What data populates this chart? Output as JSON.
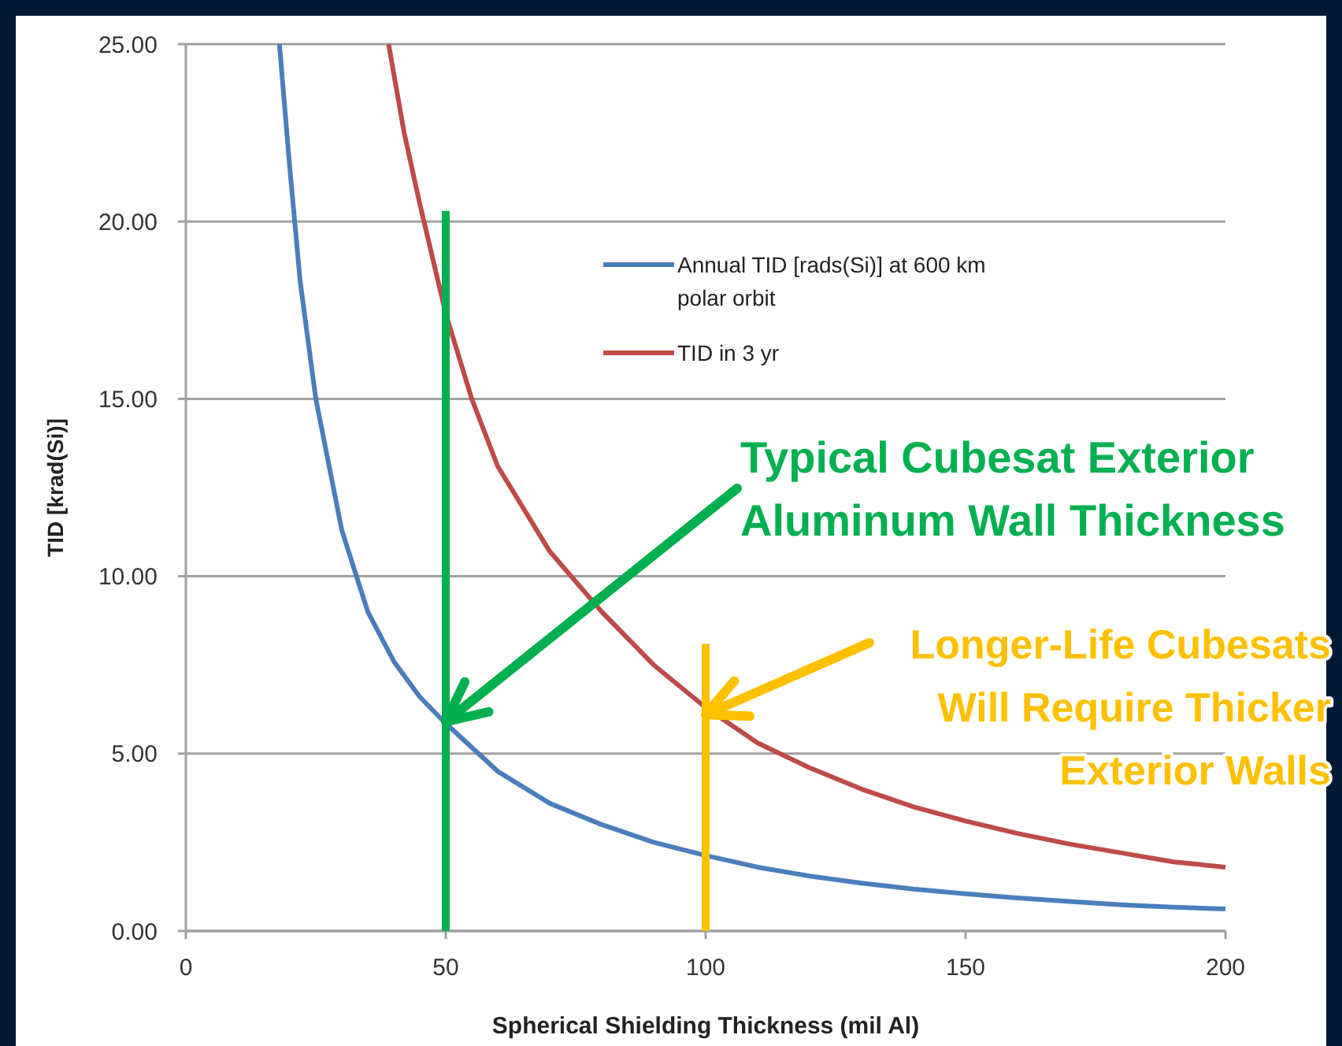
{
  "chart_data": {
    "type": "line",
    "xlabel": "Spherical Shielding Thickness  (mil Al)",
    "ylabel": "TID [krad(Si)]",
    "xlim": [
      0,
      200
    ],
    "xticks": [
      0,
      50,
      100,
      150,
      200
    ],
    "ylim": [
      0,
      25
    ],
    "yticks": [
      {
        "value": 0,
        "label": "0.00"
      },
      {
        "value": 5,
        "label": "5.00"
      },
      {
        "value": 10,
        "label": "10.00"
      },
      {
        "value": 15,
        "label": "15.00"
      },
      {
        "value": 20,
        "label": "20.00"
      },
      {
        "value": 25,
        "label": "25.00"
      }
    ],
    "grid": "y",
    "legend": "right",
    "series": [
      {
        "name": "Annual TID  [rads(Si)] at 600 km\npolar orbit",
        "color": "#4a7ebb",
        "x": [
          18,
          20,
          22,
          25,
          30,
          35,
          40,
          45,
          50,
          60,
          70,
          80,
          90,
          100,
          110,
          120,
          130,
          140,
          150,
          160,
          170,
          180,
          190,
          200
        ],
        "values": [
          25,
          21.5,
          18.3,
          15,
          11.3,
          9.0,
          7.6,
          6.6,
          5.85,
          4.5,
          3.6,
          3.0,
          2.5,
          2.13,
          1.8,
          1.55,
          1.35,
          1.18,
          1.05,
          0.93,
          0.83,
          0.74,
          0.67,
          0.62
        ]
      },
      {
        "name": "TID in 3 yr",
        "color": "#be4b48",
        "x": [
          39,
          42,
          45,
          50,
          55,
          60,
          70,
          80,
          90,
          100,
          110,
          120,
          130,
          140,
          150,
          160,
          170,
          180,
          190,
          200
        ],
        "values": [
          25,
          22.5,
          20.5,
          17.4,
          15.0,
          13.1,
          10.7,
          9.0,
          7.5,
          6.3,
          5.3,
          4.6,
          4.0,
          3.5,
          3.1,
          2.75,
          2.45,
          2.2,
          1.95,
          1.8
        ]
      },
      {
        "color": "#00b050",
        "x": [
          50,
          50
        ],
        "values": [
          0,
          20.3
        ]
      },
      {
        "color": "#ffc000",
        "x": [
          100,
          100
        ],
        "values": [
          0,
          8.1
        ]
      }
    ],
    "annotations": [
      {
        "text": "Typical Cubesat Exterior\nAluminum Wall Thickness",
        "x": 50,
        "y": 5.9
      },
      {
        "text": "Longer-Life Cubesats\nWill Require Thicker\nExterior Walls",
        "x": 100,
        "y": 6.1
      }
    ]
  }
}
